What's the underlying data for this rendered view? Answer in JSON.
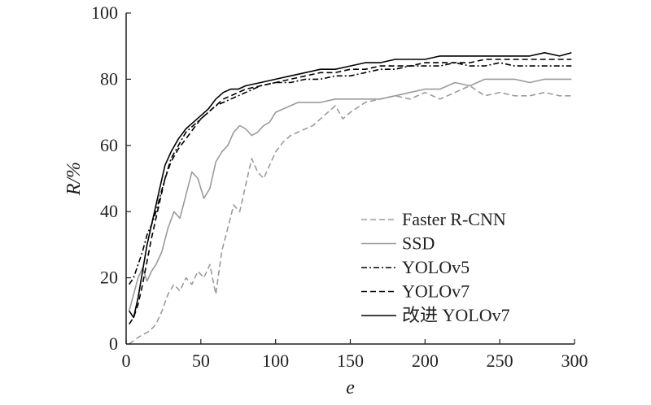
{
  "chart_data": {
    "type": "line",
    "xlabel": "e",
    "ylabel": "R/%",
    "xlim": [
      0,
      300
    ],
    "ylim": [
      0,
      100
    ],
    "xticks": [
      "0",
      "50",
      "100",
      "150",
      "200",
      "250",
      "300"
    ],
    "yticks": [
      "0",
      "20",
      "40",
      "60",
      "80",
      "100"
    ],
    "grid": false,
    "legend_position": "bottom-right",
    "series": [
      {
        "name": "Faster R-CNN",
        "color": "#9b9b9b",
        "dash": "dashed",
        "x": [
          2,
          5,
          8,
          12,
          16,
          20,
          24,
          28,
          32,
          36,
          40,
          44,
          48,
          52,
          56,
          60,
          64,
          68,
          72,
          76,
          80,
          84,
          88,
          92,
          96,
          100,
          105,
          110,
          115,
          120,
          125,
          130,
          135,
          140,
          145,
          150,
          160,
          170,
          180,
          190,
          200,
          210,
          220,
          230,
          240,
          250,
          260,
          270,
          280,
          290,
          298
        ],
        "y": [
          0,
          1,
          2,
          3,
          4,
          6,
          10,
          15,
          18,
          16,
          20,
          18,
          22,
          20,
          24,
          15,
          28,
          35,
          42,
          40,
          48,
          56,
          52,
          50,
          54,
          58,
          61,
          63,
          64,
          65,
          66,
          68,
          70,
          72,
          68,
          70,
          73,
          74,
          75,
          74,
          76,
          74,
          76,
          78,
          75,
          76,
          75,
          75,
          76,
          75,
          75
        ]
      },
      {
        "name": "SSD",
        "color": "#9b9b9b",
        "dash": "solid",
        "x": [
          2,
          5,
          8,
          11,
          14,
          17,
          20,
          24,
          28,
          32,
          36,
          40,
          44,
          48,
          52,
          56,
          60,
          64,
          68,
          72,
          76,
          80,
          84,
          88,
          92,
          96,
          100,
          105,
          110,
          115,
          120,
          130,
          140,
          150,
          160,
          170,
          180,
          190,
          200,
          210,
          220,
          230,
          240,
          250,
          260,
          270,
          280,
          290,
          298
        ],
        "y": [
          10,
          15,
          20,
          23,
          19,
          22,
          24,
          28,
          35,
          40,
          38,
          45,
          52,
          50,
          44,
          47,
          55,
          58,
          60,
          64,
          66,
          65,
          63,
          64,
          66,
          67,
          70,
          71,
          72,
          73,
          73,
          73,
          74,
          74,
          74,
          74,
          75,
          76,
          77,
          77,
          79,
          78,
          80,
          80,
          80,
          79,
          80,
          80,
          80
        ]
      },
      {
        "name": "YOLOv5",
        "color": "#000000",
        "dash": "dashdot",
        "x": [
          2,
          5,
          8,
          11,
          14,
          17,
          20,
          23,
          26,
          30,
          35,
          40,
          45,
          50,
          55,
          60,
          65,
          70,
          75,
          80,
          90,
          100,
          110,
          120,
          130,
          140,
          150,
          160,
          170,
          180,
          190,
          200,
          210,
          220,
          230,
          240,
          250,
          260,
          270,
          280,
          290,
          298
        ],
        "y": [
          18,
          20,
          24,
          28,
          33,
          36,
          40,
          45,
          50,
          56,
          60,
          64,
          66,
          68,
          70,
          72,
          73,
          74,
          75,
          76,
          78,
          79,
          79,
          80,
          80,
          81,
          81,
          82,
          83,
          83,
          84,
          84,
          84,
          85,
          84,
          84,
          85,
          84,
          84,
          84,
          84,
          84
        ]
      },
      {
        "name": "YOLOv7",
        "color": "#000000",
        "dash": "dashed",
        "x": [
          2,
          5,
          8,
          11,
          14,
          17,
          20,
          23,
          26,
          30,
          35,
          40,
          45,
          50,
          55,
          60,
          65,
          70,
          75,
          80,
          90,
          100,
          110,
          120,
          130,
          140,
          150,
          160,
          170,
          180,
          190,
          200,
          210,
          220,
          230,
          240,
          250,
          260,
          270,
          280,
          290,
          298
        ],
        "y": [
          6,
          8,
          12,
          18,
          25,
          32,
          38,
          44,
          50,
          55,
          59,
          62,
          65,
          68,
          70,
          72,
          74,
          75,
          76,
          77,
          78,
          79,
          80,
          81,
          82,
          82,
          83,
          83,
          84,
          84,
          84,
          85,
          85,
          85,
          85,
          86,
          86,
          86,
          86,
          86,
          86,
          86
        ]
      },
      {
        "name": "改进 YOLOv7",
        "color": "#000000",
        "dash": "solid",
        "x": [
          2,
          5,
          8,
          11,
          14,
          17,
          20,
          23,
          26,
          30,
          35,
          40,
          45,
          50,
          55,
          60,
          65,
          70,
          75,
          80,
          90,
          100,
          110,
          120,
          130,
          140,
          150,
          160,
          170,
          180,
          190,
          200,
          210,
          220,
          230,
          240,
          250,
          260,
          270,
          280,
          290,
          298
        ],
        "y": [
          10,
          8,
          14,
          22,
          30,
          36,
          42,
          48,
          54,
          58,
          62,
          65,
          67,
          69,
          71,
          74,
          76,
          77,
          77,
          78,
          79,
          80,
          81,
          82,
          83,
          83,
          84,
          85,
          85,
          86,
          86,
          86,
          87,
          87,
          87,
          87,
          87,
          87,
          87,
          88,
          87,
          88
        ]
      }
    ]
  }
}
